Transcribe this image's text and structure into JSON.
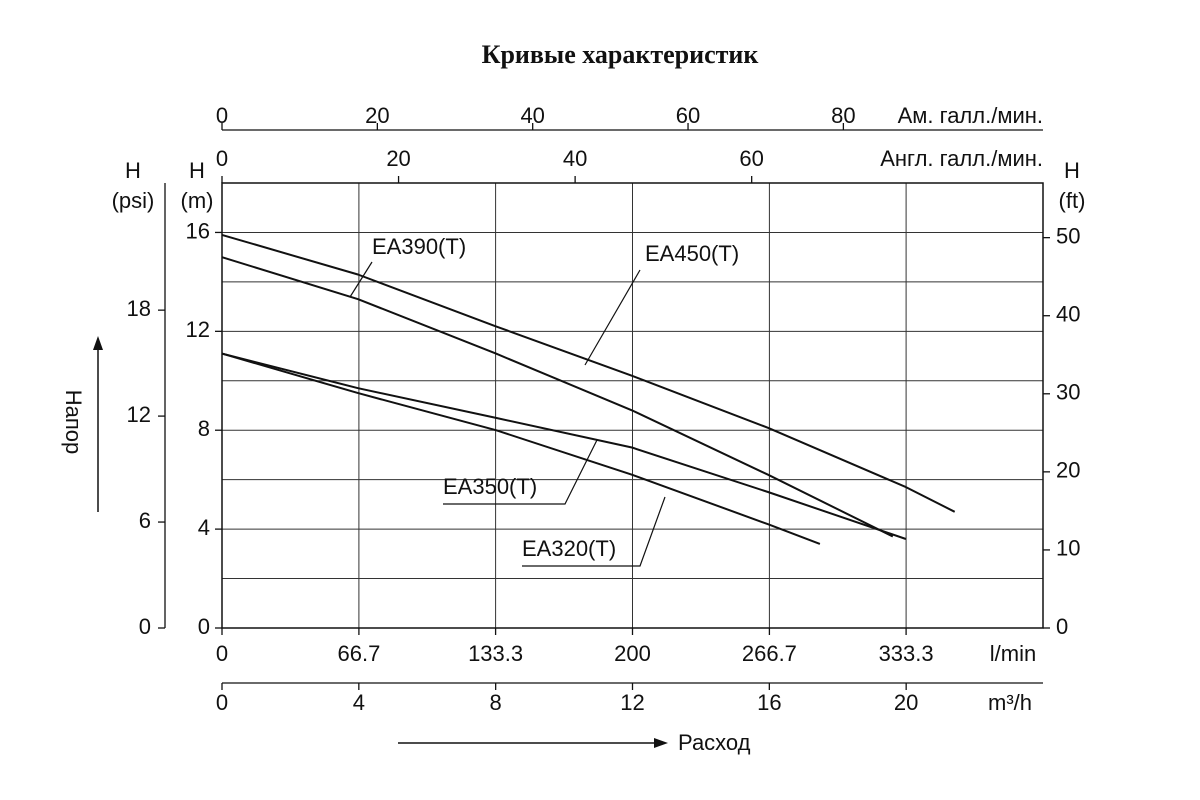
{
  "chart_data": {
    "type": "line",
    "title": "Кривые характеристик",
    "x_label": "l/min",
    "x_title": "Расход",
    "xlim": [
      0,
      400
    ],
    "xticks": [
      0,
      66.7,
      133.3,
      200,
      266.7,
      333.3
    ],
    "y_head": "H",
    "y_label": "(m)",
    "y_title": "Напор",
    "ylim": [
      0,
      18
    ],
    "yticks": [
      0,
      4,
      8,
      12,
      16
    ],
    "ygrid": [
      2,
      4,
      6,
      8,
      10,
      12,
      14,
      16
    ],
    "grid": true,
    "x2": {
      "label": "m³/h",
      "lim": [
        0,
        24
      ],
      "ticks": [
        0,
        4,
        8,
        12,
        16,
        20
      ]
    },
    "x_top_us": {
      "label": "Ам. галл./мин.",
      "lim": [
        0,
        105.7
      ],
      "ticks": [
        0,
        20,
        40,
        60,
        80
      ]
    },
    "x_top_uk": {
      "label": "Англ. галл./мин.",
      "lim": [
        0,
        93
      ],
      "ticks": [
        0,
        20,
        40,
        60
      ]
    },
    "y_psi": {
      "head": "H",
      "label": "(psi)",
      "lim": [
        0,
        25.2
      ],
      "ticks": [
        0,
        6,
        12,
        18
      ]
    },
    "y_ft": {
      "head": "H",
      "label": "(ft)",
      "lim": [
        0,
        57
      ],
      "ticks": [
        0,
        10,
        20,
        30,
        40,
        50
      ]
    },
    "series": [
      {
        "name": "EA450(T)",
        "color": "#111111",
        "x": [
          0,
          66.2,
          133.5,
          199.8,
          266,
          333.2,
          357
        ],
        "values": [
          15.9,
          14.3,
          12.2,
          10.2,
          8.1,
          5.7,
          4.7
        ]
      },
      {
        "name": "EA390(T)",
        "color": "#111111",
        "x": [
          0,
          66.3,
          133.5,
          199.8,
          266,
          326.8
        ],
        "values": [
          15.0,
          13.3,
          11.1,
          8.8,
          6.2,
          3.7
        ]
      },
      {
        "name": "EA350(T)",
        "color": "#111111",
        "x": [
          0,
          66.3,
          133.5,
          199.7,
          266,
          333.2
        ],
        "values": [
          11.1,
          9.7,
          8.5,
          7.3,
          5.5,
          3.6
        ]
      },
      {
        "name": "EA320(T)",
        "color": "#111111",
        "x": [
          0,
          66.3,
          133.5,
          199.7,
          266,
          291.3
        ],
        "values": [
          11.1,
          9.5,
          8.0,
          6.2,
          4.2,
          3.4
        ]
      }
    ]
  }
}
